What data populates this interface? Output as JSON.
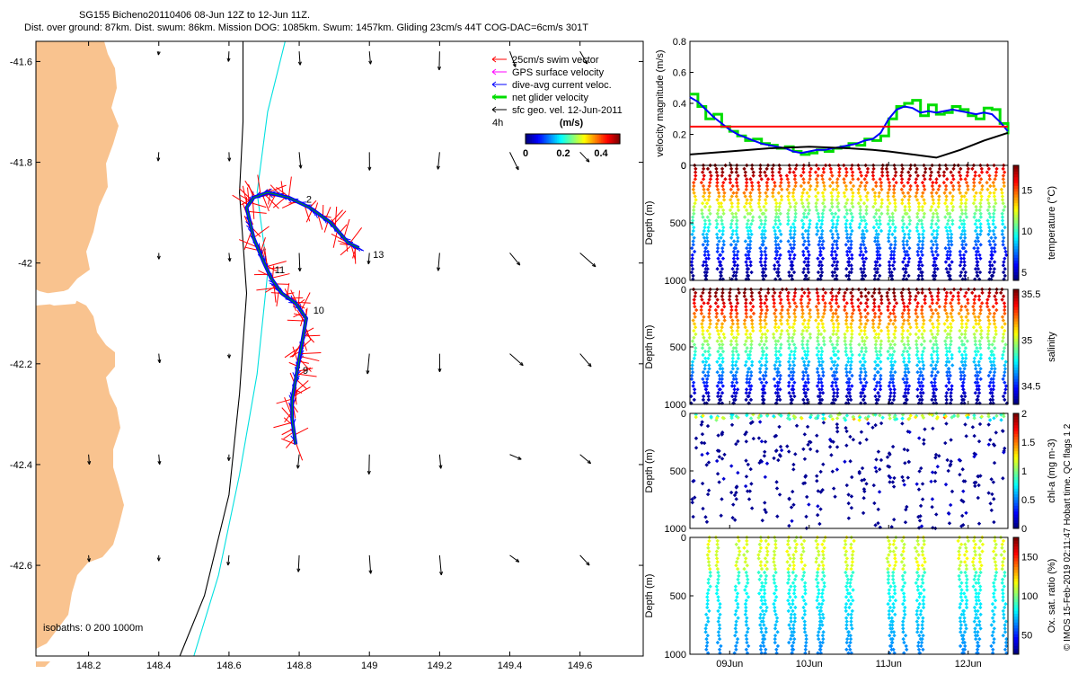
{
  "header": {
    "line1": "SG155 Bicheno20110406 08-Jun 12Z to 12-Jun 11Z.",
    "line2": "Dist. over ground: 87km. Dist. swum: 86km. Mission DOG: 1085km. Swum: 1457km. Gliding 23cm/s 44T COG-DAC=6cm/s 301T"
  },
  "side_note": "© IMOS 15-Feb-2019 02:11:47 Hobart time. QC flags 1  2",
  "chart_data": [
    {
      "id": "map",
      "type": "scatter",
      "title": "",
      "xlabel": "",
      "ylabel": "",
      "xlim": [
        148.05,
        149.78
      ],
      "ylim": [
        -42.78,
        -41.56
      ],
      "xticks": [
        "148.2",
        "148.4",
        "148.6",
        "148.8",
        "149",
        "149.2",
        "149.4",
        "149.6"
      ],
      "xtick_values": [
        148.2,
        148.4,
        148.6,
        148.8,
        149.0,
        149.2,
        149.4,
        149.6
      ],
      "yticks": [
        "-41.6",
        "-41.8",
        "-42",
        "-42.2",
        "-42.4",
        "-42.6"
      ],
      "ytick_values": [
        -41.6,
        -41.8,
        -42.0,
        -42.2,
        -42.4,
        -42.6
      ],
      "legend": {
        "entries": [
          {
            "label": "25cm/s swim vector",
            "color": "#ff0000"
          },
          {
            "label": "GPS surface velocity",
            "color": "#ff00ff"
          },
          {
            "label": "dive-avg current veloc.",
            "color": "#0000ff"
          },
          {
            "label": "net glider velocity",
            "color": "#00dd00"
          },
          {
            "label": "sfc geo. vel. 12-Jun-2011",
            "color": "#000000"
          }
        ],
        "hours_label": "4h",
        "colorbar_label": "(m/s)",
        "colorbar_ticks": [
          "0",
          "0.2",
          "0.4"
        ],
        "colorbar_tick_values": [
          0,
          0.2,
          0.4
        ],
        "colorbar_range": [
          0,
          0.5
        ],
        "placement": "top-right"
      },
      "isobaths_label": "isobaths: 0   200  1000m",
      "track": [
        {
          "lon": 148.79,
          "lat": -42.36
        },
        {
          "lon": 148.78,
          "lat": -42.31
        },
        {
          "lon": 148.78,
          "lat": -42.27
        },
        {
          "lon": 148.79,
          "lat": -42.23
        },
        {
          "lon": 148.8,
          "lat": -42.19
        },
        {
          "lon": 148.81,
          "lat": -42.15
        },
        {
          "lon": 148.82,
          "lat": -42.11
        },
        {
          "lon": 148.79,
          "lat": -42.08
        },
        {
          "lon": 148.75,
          "lat": -42.06
        },
        {
          "lon": 148.72,
          "lat": -42.03
        },
        {
          "lon": 148.7,
          "lat": -42.0
        },
        {
          "lon": 148.67,
          "lat": -41.95
        },
        {
          "lon": 148.65,
          "lat": -41.89
        },
        {
          "lon": 148.67,
          "lat": -41.87
        },
        {
          "lon": 148.71,
          "lat": -41.86
        },
        {
          "lon": 148.77,
          "lat": -41.87
        },
        {
          "lon": 148.83,
          "lat": -41.89
        },
        {
          "lon": 148.89,
          "lat": -41.92
        },
        {
          "lon": 148.94,
          "lat": -41.96
        },
        {
          "lon": 148.97,
          "lat": -41.97
        }
      ],
      "track_labels": [
        {
          "label": "2",
          "lon": 148.82,
          "lat": -41.88
        },
        {
          "label": "13",
          "lon": 149.01,
          "lat": -41.99
        },
        {
          "label": "11",
          "lon": 148.73,
          "lat": -42.02
        },
        {
          "label": "10",
          "lon": 148.84,
          "lat": -42.1
        },
        {
          "label": "9",
          "lon": 148.81,
          "lat": -42.22
        }
      ],
      "isobath_0": [
        {
          "lon": 148.64,
          "lat": -41.56
        },
        {
          "lon": 148.64,
          "lat": -41.72
        },
        {
          "lon": 148.63,
          "lat": -41.86
        },
        {
          "lon": 148.65,
          "lat": -42.06
        },
        {
          "lon": 148.63,
          "lat": -42.26
        },
        {
          "lon": 148.6,
          "lat": -42.46
        },
        {
          "lon": 148.53,
          "lat": -42.66
        },
        {
          "lon": 148.46,
          "lat": -42.78
        }
      ],
      "isobath_1000": [
        {
          "lon": 148.76,
          "lat": -41.56
        },
        {
          "lon": 148.71,
          "lat": -41.7
        },
        {
          "lon": 148.68,
          "lat": -41.86
        },
        {
          "lon": 148.71,
          "lat": -42.02
        },
        {
          "lon": 148.68,
          "lat": -42.22
        },
        {
          "lon": 148.63,
          "lat": -42.42
        },
        {
          "lon": 148.57,
          "lat": -42.62
        },
        {
          "lon": 148.5,
          "lat": -42.78
        }
      ]
    },
    {
      "id": "velocity",
      "type": "line",
      "title": "",
      "xlabel": "",
      "ylabel": "velocity magnitude (m/s)",
      "ylim": [
        0,
        0.8
      ],
      "yticks": [
        "0",
        "0.2",
        "0.4",
        "0.6",
        "0.8"
      ],
      "ytick_values": [
        0,
        0.2,
        0.4,
        0.6,
        0.8
      ],
      "xlim": [
        8.5,
        12.5
      ],
      "series": [
        {
          "color": "#00dd00",
          "values": [
            [
              8.5,
              0.46
            ],
            [
              8.6,
              0.38
            ],
            [
              8.7,
              0.3
            ],
            [
              8.8,
              0.33
            ],
            [
              8.9,
              0.25
            ],
            [
              9.0,
              0.22
            ],
            [
              9.1,
              0.19
            ],
            [
              9.2,
              0.16
            ],
            [
              9.3,
              0.17
            ],
            [
              9.4,
              0.14
            ],
            [
              9.5,
              0.13
            ],
            [
              9.6,
              0.11
            ],
            [
              9.7,
              0.12
            ],
            [
              9.8,
              0.09
            ],
            [
              9.9,
              0.07
            ],
            [
              10.0,
              0.08
            ],
            [
              10.1,
              0.1
            ],
            [
              10.2,
              0.09
            ],
            [
              10.3,
              0.11
            ],
            [
              10.4,
              0.12
            ],
            [
              10.5,
              0.14
            ],
            [
              10.6,
              0.13
            ],
            [
              10.7,
              0.17
            ],
            [
              10.8,
              0.16
            ],
            [
              10.9,
              0.19
            ],
            [
              11.0,
              0.3
            ],
            [
              11.1,
              0.38
            ],
            [
              11.2,
              0.4
            ],
            [
              11.3,
              0.42
            ],
            [
              11.4,
              0.32
            ],
            [
              11.5,
              0.39
            ],
            [
              11.6,
              0.33
            ],
            [
              11.7,
              0.34
            ],
            [
              11.8,
              0.38
            ],
            [
              11.9,
              0.36
            ],
            [
              12.0,
              0.32
            ],
            [
              12.1,
              0.3
            ],
            [
              12.2,
              0.37
            ],
            [
              12.3,
              0.36
            ],
            [
              12.4,
              0.27
            ],
            [
              12.5,
              0.2
            ]
          ]
        },
        {
          "color": "#0000ff",
          "values": [
            [
              8.5,
              0.44
            ],
            [
              8.6,
              0.41
            ],
            [
              8.7,
              0.36
            ],
            [
              8.8,
              0.31
            ],
            [
              8.9,
              0.27
            ],
            [
              9.0,
              0.23
            ],
            [
              9.1,
              0.2
            ],
            [
              9.2,
              0.18
            ],
            [
              9.3,
              0.16
            ],
            [
              9.4,
              0.14
            ],
            [
              9.5,
              0.13
            ],
            [
              9.6,
              0.12
            ],
            [
              9.7,
              0.11
            ],
            [
              9.8,
              0.09
            ],
            [
              9.9,
              0.08
            ],
            [
              10.0,
              0.09
            ],
            [
              10.1,
              0.1
            ],
            [
              10.2,
              0.1
            ],
            [
              10.3,
              0.11
            ],
            [
              10.4,
              0.12
            ],
            [
              10.5,
              0.13
            ],
            [
              10.6,
              0.14
            ],
            [
              10.7,
              0.16
            ],
            [
              10.8,
              0.17
            ],
            [
              10.9,
              0.21
            ],
            [
              11.0,
              0.3
            ],
            [
              11.1,
              0.36
            ],
            [
              11.2,
              0.38
            ],
            [
              11.3,
              0.37
            ],
            [
              11.4,
              0.34
            ],
            [
              11.5,
              0.35
            ],
            [
              11.6,
              0.34
            ],
            [
              11.7,
              0.35
            ],
            [
              11.8,
              0.36
            ],
            [
              11.9,
              0.35
            ],
            [
              12.0,
              0.34
            ],
            [
              12.1,
              0.33
            ],
            [
              12.2,
              0.34
            ],
            [
              12.3,
              0.33
            ],
            [
              12.4,
              0.28
            ],
            [
              12.5,
              0.22
            ]
          ]
        },
        {
          "color": "#ff0000",
          "values": [
            [
              8.5,
              0.25
            ],
            [
              12.5,
              0.25
            ]
          ]
        },
        {
          "color": "#000000",
          "values": [
            [
              8.5,
              0.07
            ],
            [
              9.0,
              0.09
            ],
            [
              9.5,
              0.11
            ],
            [
              10.0,
              0.12
            ],
            [
              10.5,
              0.11
            ],
            [
              10.8,
              0.1
            ],
            [
              11.0,
              0.09
            ],
            [
              11.3,
              0.07
            ],
            [
              11.6,
              0.05
            ],
            [
              11.9,
              0.1
            ],
            [
              12.2,
              0.16
            ],
            [
              12.5,
              0.21
            ]
          ]
        }
      ]
    },
    {
      "id": "temperature",
      "type": "heatmap",
      "title": "",
      "xlabel": "",
      "ylabel": "Depth (m)",
      "colorbar_label": "temperature (°C)",
      "colorbar_ticks": [
        "5",
        "10",
        "15"
      ],
      "colorbar_tick_values": [
        5,
        10,
        15
      ],
      "crange": [
        4,
        18
      ],
      "yticks": [
        "0",
        "500",
        "1000"
      ],
      "ytick_values": [
        0,
        500,
        1000
      ],
      "ylim": [
        1000,
        0
      ],
      "profile": {
        "surface": 17.5,
        "bottom": 4.5
      }
    },
    {
      "id": "salinity",
      "type": "heatmap",
      "title": "",
      "xlabel": "",
      "ylabel": "Depth (m)",
      "colorbar_label": "salinity",
      "colorbar_ticks": [
        "34.5",
        "35",
        "35.5"
      ],
      "colorbar_tick_values": [
        34.5,
        35,
        35.5
      ],
      "crange": [
        34.3,
        35.55
      ],
      "yticks": [
        "0",
        "500",
        "1000"
      ],
      "ytick_values": [
        0,
        500,
        1000
      ],
      "ylim": [
        1000,
        0
      ],
      "profile": {
        "surface": 35.55,
        "bottom": 34.35
      }
    },
    {
      "id": "chla",
      "type": "heatmap",
      "title": "",
      "xlabel": "",
      "ylabel": "Depth (m)",
      "colorbar_label": "chl-a (mg m-3)",
      "colorbar_ticks": [
        "0",
        "0.5",
        "1",
        "1.5",
        "2"
      ],
      "colorbar_tick_values": [
        0,
        0.5,
        1,
        1.5,
        2
      ],
      "crange": [
        0,
        2
      ],
      "yticks": [
        "0",
        "500",
        "1000"
      ],
      "ytick_values": [
        0,
        500,
        1000
      ],
      "ylim": [
        1000,
        0
      ]
    },
    {
      "id": "oxygen",
      "type": "heatmap",
      "title": "",
      "xlabel": "",
      "ylabel": "Depth (m)",
      "colorbar_label": "Ox. sat. ratio (%)",
      "colorbar_ticks": [
        "50",
        "100",
        "150"
      ],
      "colorbar_tick_values": [
        50,
        100,
        150
      ],
      "crange": [
        25,
        175
      ],
      "yticks": [
        "0",
        "500",
        "1000"
      ],
      "ytick_values": [
        0,
        500,
        1000
      ],
      "ylim": [
        1000,
        0
      ],
      "xticks": [
        "09Jun",
        "10Jun",
        "11Jun",
        "12Jun"
      ],
      "xtick_values": [
        9.0,
        10.0,
        11.0,
        12.0
      ],
      "xlim": [
        8.5,
        12.5
      ]
    }
  ]
}
